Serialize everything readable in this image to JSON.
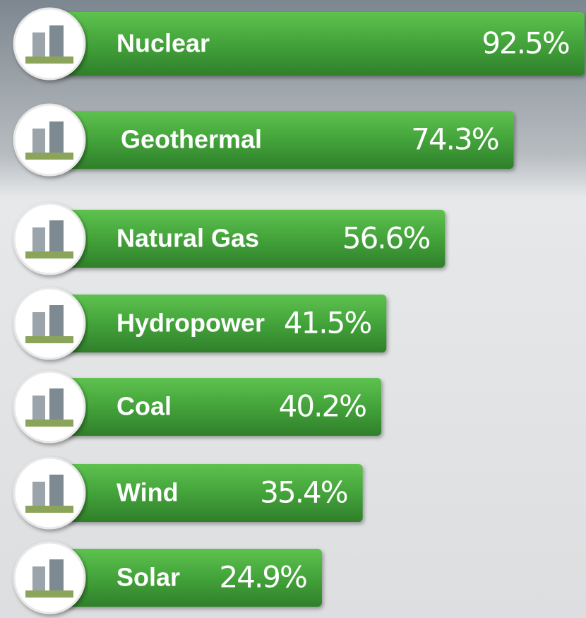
{
  "chart_data": {
    "type": "bar",
    "categories": [
      "Nuclear",
      "Geothermal",
      "Natural Gas",
      "Hydropower",
      "Coal",
      "Wind",
      "Solar"
    ],
    "values": [
      92.5,
      74.3,
      56.6,
      41.5,
      40.2,
      35.4,
      24.9
    ],
    "value_labels": [
      "92.5%",
      "74.3%",
      "56.6%",
      "41.5%",
      "40.2%",
      "35.4%",
      "24.9%"
    ],
    "color": "#43a33a"
  }
}
